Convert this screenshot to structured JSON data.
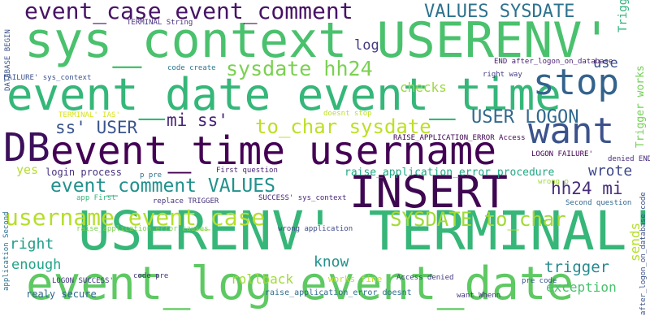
{
  "words": [
    {
      "id": "w0",
      "text": "USERENV' TERMINAL'",
      "color": "#36b678"
    },
    {
      "id": "w1",
      "text": "event_log event_date",
      "color": "#5ec962"
    },
    {
      "id": "w2",
      "text": "sys_context USERENV'",
      "color": "#4ac16d"
    },
    {
      "id": "w3",
      "text": "event_date event_time",
      "color": "#35b779"
    },
    {
      "id": "w4",
      "text": "event_time username",
      "color": "#440154"
    },
    {
      "id": "w5",
      "text": "INSERT",
      "color": "#3e0751"
    },
    {
      "id": "w6",
      "text": "DB",
      "color": "#3c0f5b"
    },
    {
      "id": "w7",
      "text": "want",
      "color": "#3b528b"
    },
    {
      "id": "w8",
      "text": "stop",
      "color": "#33638d"
    },
    {
      "id": "w9",
      "text": "event_case event_comment",
      "color": "#471365"
    },
    {
      "id": "w10",
      "text": "username event_case",
      "color": "#b5de2b"
    },
    {
      "id": "w11",
      "text": "SYSDATE to_char",
      "color": "#a2da37"
    },
    {
      "id": "w12",
      "text": "sysdate hh24",
      "color": "#7ad151"
    },
    {
      "id": "w13",
      "text": "to_char sysdate",
      "color": "#bddf26"
    },
    {
      "id": "w14",
      "text": "event_comment VALUES",
      "color": "#21918c"
    },
    {
      "id": "w15",
      "text": "VALUES SYSDATE",
      "color": "#2c728e"
    },
    {
      "id": "w16",
      "text": "USER LOGON",
      "color": "#31688e"
    },
    {
      "id": "w17",
      "text": "ss' USER",
      "color": "#3a548c"
    },
    {
      "id": "w18",
      "text": "mi ss'",
      "color": "#482475"
    },
    {
      "id": "w19",
      "text": "hh24 mi",
      "color": "#472d7b"
    },
    {
      "id": "w20",
      "text": "wrote",
      "color": "#3f4889"
    },
    {
      "id": "w21",
      "text": "trigger",
      "color": "#238a8d"
    },
    {
      "id": "w22",
      "text": "rollback",
      "color": "#9fda3a"
    },
    {
      "id": "w23",
      "text": "exception",
      "color": "#4ac16d"
    },
    {
      "id": "w24",
      "text": "right",
      "color": "#1f9e89"
    },
    {
      "id": "w25",
      "text": "enough",
      "color": "#20a486"
    },
    {
      "id": "w26",
      "text": "know",
      "color": "#21918c"
    },
    {
      "id": "w27",
      "text": "checks",
      "color": "#9bd93c"
    },
    {
      "id": "w28",
      "text": "log",
      "color": "#443983"
    },
    {
      "id": "w29",
      "text": "use",
      "color": "#3b528b"
    },
    {
      "id": "w30",
      "text": "yes",
      "color": "#b5de2b"
    },
    {
      "id": "w31",
      "text": "login process",
      "color": "#46327e"
    },
    {
      "id": "w32",
      "text": "raise_application_error procedure",
      "color": "#22a884"
    },
    {
      "id": "w33",
      "text": "works fine",
      "color": "#c8e020"
    },
    {
      "id": "w34",
      "text": "realy secure",
      "color": "#31688e"
    },
    {
      "id": "w35",
      "text": "raise_application_error doesnt",
      "color": "#2e6e8e"
    },
    {
      "id": "w36",
      "text": "Access denied",
      "color": "#443983"
    },
    {
      "id": "w37",
      "text": "want Whenn",
      "color": "#453781"
    },
    {
      "id": "w38",
      "text": "pre code",
      "color": "#3a548c"
    },
    {
      "id": "w39",
      "text": "code pre",
      "color": "#46327e"
    },
    {
      "id": "w40",
      "text": "LOGON SUCCESS'",
      "color": "#443983"
    },
    {
      "id": "w41",
      "text": "wrong application",
      "color": "#3e4a89"
    },
    {
      "id": "w42",
      "text": "raise_application_error causes",
      "color": "#7ad151"
    },
    {
      "id": "w43",
      "text": "SUCCESS' sys_context",
      "color": "#482878"
    },
    {
      "id": "w44",
      "text": "Second question",
      "color": "#31688e"
    },
    {
      "id": "w45",
      "text": "replace TRIGGER",
      "color": "#46327e"
    },
    {
      "id": "w46",
      "text": "app First",
      "color": "#35b779"
    },
    {
      "id": "w47",
      "text": "First question",
      "color": "#482878"
    },
    {
      "id": "w48",
      "text": "wrong p",
      "color": "#9fda3a"
    },
    {
      "id": "w49",
      "text": "p pre",
      "color": "#2d708e"
    },
    {
      "id": "w50",
      "text": "LOGON FAILURE'",
      "color": "#440154"
    },
    {
      "id": "w51",
      "text": "denied END",
      "color": "#472c7a"
    },
    {
      "id": "w52",
      "text": "RAISE_APPLICATION_ERROR Access",
      "color": "#3e0751"
    },
    {
      "id": "w53",
      "text": "doesnt stop",
      "color": "#bddf26"
    },
    {
      "id": "w54",
      "text": "TERMINAL' IAS'",
      "color": "#d8e219"
    },
    {
      "id": "w55",
      "text": "FAILURE' sys_context",
      "color": "#3b528b"
    },
    {
      "id": "w56",
      "text": "right way",
      "color": "#433e85"
    },
    {
      "id": "w57",
      "text": "END after_logon_on_database",
      "color": "#481f70"
    },
    {
      "id": "w58",
      "text": "code create",
      "color": "#2a788e"
    },
    {
      "id": "w59",
      "text": "TERMINAL String",
      "color": "#46337e"
    },
    {
      "id": "w60",
      "text": "DATABASE BEGIN",
      "color": "#3b528b",
      "rotated": true
    },
    {
      "id": "w61",
      "text": "application Second",
      "color": "#2c728e",
      "rotated": true
    },
    {
      "id": "w62",
      "text": "sends",
      "color": "#b5de2b",
      "rotated": true
    },
    {
      "id": "w63",
      "text": "Trigger works",
      "color": "#73d056",
      "rotated": true
    },
    {
      "id": "w64",
      "text": "after_logon_on_database code",
      "color": "#3b528b",
      "rotated": true
    },
    {
      "id": "w65",
      "text": "Trigger",
      "color": "#2fb47c",
      "rotated": true
    }
  ]
}
